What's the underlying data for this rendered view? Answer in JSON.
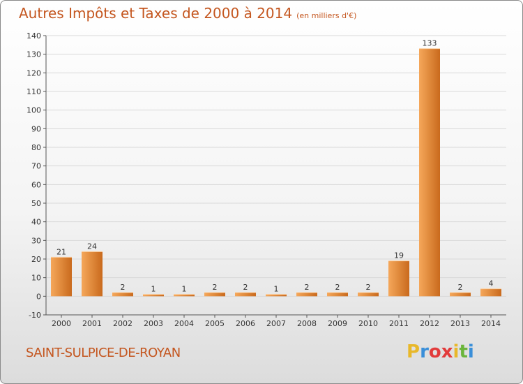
{
  "header": {
    "title": "Autres Impôts et Taxes de 2000 à 2014",
    "unit": "(en milliers d'€)"
  },
  "footer": {
    "commune": "SAINT-SULPICE-DE-ROYAN",
    "logo_letters": [
      "P",
      "r",
      "o",
      "x",
      "i",
      "t",
      "i"
    ],
    "logo_colors": [
      "#e8b82a",
      "#3a8fd9",
      "#e23b3b",
      "#e23b3b",
      "#e8b82a",
      "#6bb53c",
      "#3a8fd9"
    ]
  },
  "colors": {
    "bar_light": "#f5a75a",
    "bar_dark": "#c96a1d",
    "title": "#c4561f",
    "grid": "#d9d9d9"
  },
  "chart_data": {
    "type": "bar",
    "categories": [
      "2000",
      "2001",
      "2002",
      "2003",
      "2004",
      "2005",
      "2006",
      "2007",
      "2008",
      "2009",
      "2010",
      "2011",
      "2012",
      "2013",
      "2014"
    ],
    "values": [
      21,
      24,
      2,
      1,
      1,
      2,
      2,
      1,
      2,
      2,
      2,
      19,
      133,
      2,
      4
    ],
    "title": "Autres Impôts et Taxes de 2000 à 2014",
    "ylim": [
      -10,
      140
    ],
    "yticks": [
      -10,
      0,
      10,
      20,
      30,
      40,
      50,
      60,
      70,
      80,
      90,
      100,
      110,
      120,
      130,
      140
    ],
    "grid": true,
    "legend": "none"
  }
}
